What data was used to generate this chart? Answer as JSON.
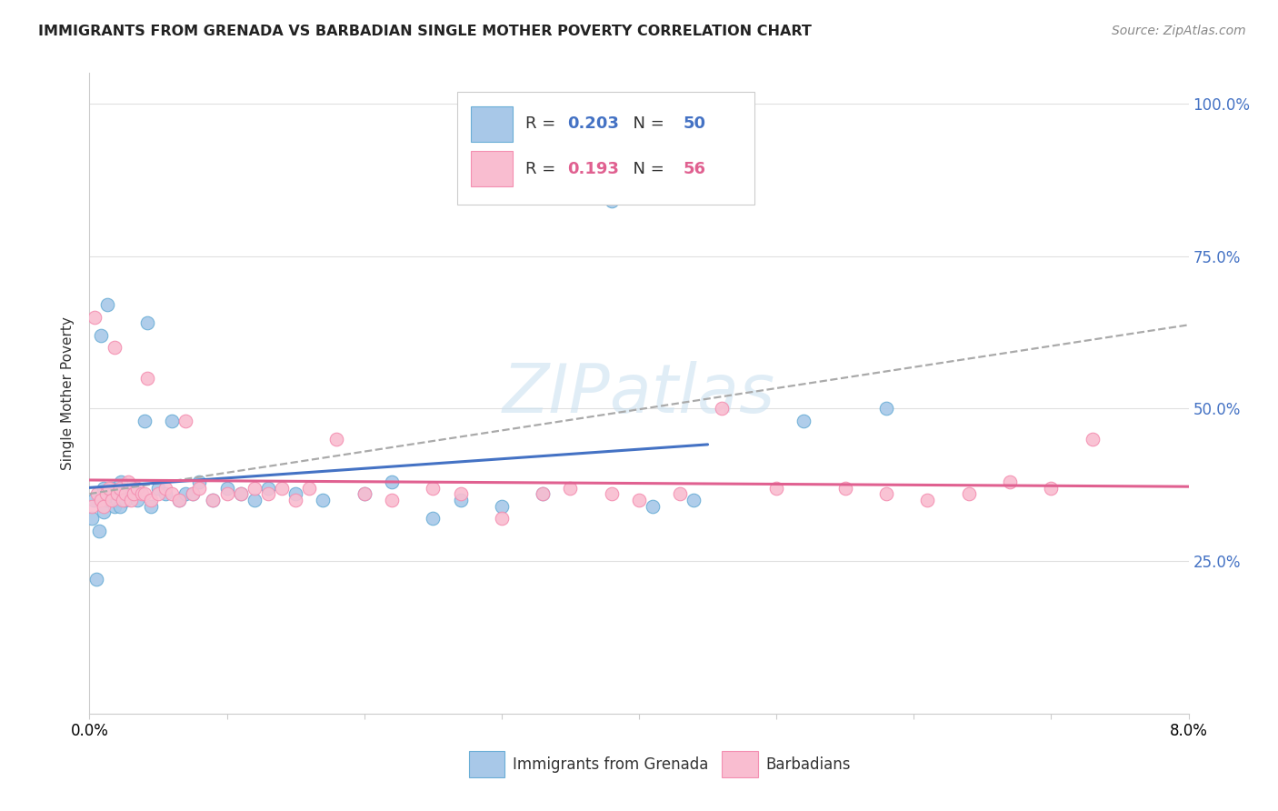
{
  "title": "IMMIGRANTS FROM GRENADA VS BARBADIAN SINGLE MOTHER POVERTY CORRELATION CHART",
  "source": "Source: ZipAtlas.com",
  "ylabel": "Single Mother Poverty",
  "blue_scatter_x": [
    0.0002,
    0.0003,
    0.0005,
    0.0007,
    0.0008,
    0.001,
    0.001,
    0.0012,
    0.0013,
    0.0015,
    0.0016,
    0.0017,
    0.0018,
    0.002,
    0.002,
    0.0022,
    0.0023,
    0.0025,
    0.0026,
    0.003,
    0.0032,
    0.0035,
    0.004,
    0.0042,
    0.0045,
    0.005,
    0.0055,
    0.006,
    0.0065,
    0.007,
    0.0075,
    0.008,
    0.009,
    0.01,
    0.011,
    0.012,
    0.013,
    0.015,
    0.017,
    0.02,
    0.022,
    0.025,
    0.027,
    0.03,
    0.033,
    0.038,
    0.041,
    0.044,
    0.052,
    0.058
  ],
  "blue_scatter_y": [
    0.32,
    0.35,
    0.22,
    0.3,
    0.62,
    0.33,
    0.37,
    0.35,
    0.67,
    0.35,
    0.37,
    0.36,
    0.34,
    0.35,
    0.36,
    0.34,
    0.38,
    0.36,
    0.35,
    0.36,
    0.37,
    0.35,
    0.48,
    0.64,
    0.34,
    0.37,
    0.36,
    0.48,
    0.35,
    0.36,
    0.36,
    0.38,
    0.35,
    0.37,
    0.36,
    0.35,
    0.37,
    0.36,
    0.35,
    0.36,
    0.38,
    0.32,
    0.35,
    0.34,
    0.36,
    0.84,
    0.34,
    0.35,
    0.48,
    0.5
  ],
  "pink_scatter_x": [
    0.0002,
    0.0004,
    0.0006,
    0.0008,
    0.001,
    0.0012,
    0.0014,
    0.0016,
    0.0018,
    0.002,
    0.0022,
    0.0024,
    0.0026,
    0.0028,
    0.003,
    0.0032,
    0.0035,
    0.0038,
    0.004,
    0.0042,
    0.0045,
    0.005,
    0.0055,
    0.006,
    0.0065,
    0.007,
    0.0075,
    0.008,
    0.009,
    0.01,
    0.011,
    0.012,
    0.013,
    0.014,
    0.015,
    0.016,
    0.018,
    0.02,
    0.022,
    0.025,
    0.027,
    0.03,
    0.033,
    0.035,
    0.038,
    0.04,
    0.043,
    0.046,
    0.05,
    0.055,
    0.058,
    0.061,
    0.064,
    0.067,
    0.07,
    0.073
  ],
  "pink_scatter_y": [
    0.34,
    0.65,
    0.36,
    0.35,
    0.34,
    0.36,
    0.37,
    0.35,
    0.6,
    0.36,
    0.37,
    0.35,
    0.36,
    0.38,
    0.35,
    0.36,
    0.37,
    0.36,
    0.36,
    0.55,
    0.35,
    0.36,
    0.37,
    0.36,
    0.35,
    0.48,
    0.36,
    0.37,
    0.35,
    0.36,
    0.36,
    0.37,
    0.36,
    0.37,
    0.35,
    0.37,
    0.45,
    0.36,
    0.35,
    0.37,
    0.36,
    0.32,
    0.36,
    0.37,
    0.36,
    0.35,
    0.36,
    0.5,
    0.37,
    0.37,
    0.36,
    0.35,
    0.36,
    0.38,
    0.37,
    0.45
  ],
  "xlim": [
    0.0,
    0.08
  ],
  "ylim": [
    0.0,
    1.05
  ],
  "yticks": [
    0.25,
    0.5,
    0.75,
    1.0
  ],
  "ytick_labels": [
    "25.0%",
    "50.0%",
    "75.0%",
    "100.0%"
  ],
  "xtick_labels": [
    "0.0%",
    "",
    "",
    "",
    "",
    "",
    "",
    "",
    "8.0%"
  ],
  "blue_scatter_color": "#a8c8e8",
  "blue_scatter_edge": "#6baed6",
  "pink_scatter_color": "#f9bdd0",
  "pink_scatter_edge": "#f48fb1",
  "blue_line_color": "#4472c4",
  "pink_line_color": "#e06090",
  "dashed_line_color": "#aaaaaa",
  "grid_color": "#e0e0e0",
  "watermark_color": "#c8dff0",
  "legend_r1": "0.203",
  "legend_n1": "50",
  "legend_r2": "0.193",
  "legend_n2": "56",
  "legend_val_color_blue": "#4472c4",
  "legend_val_color_pink": "#e06090",
  "legend_label_color": "#333333"
}
